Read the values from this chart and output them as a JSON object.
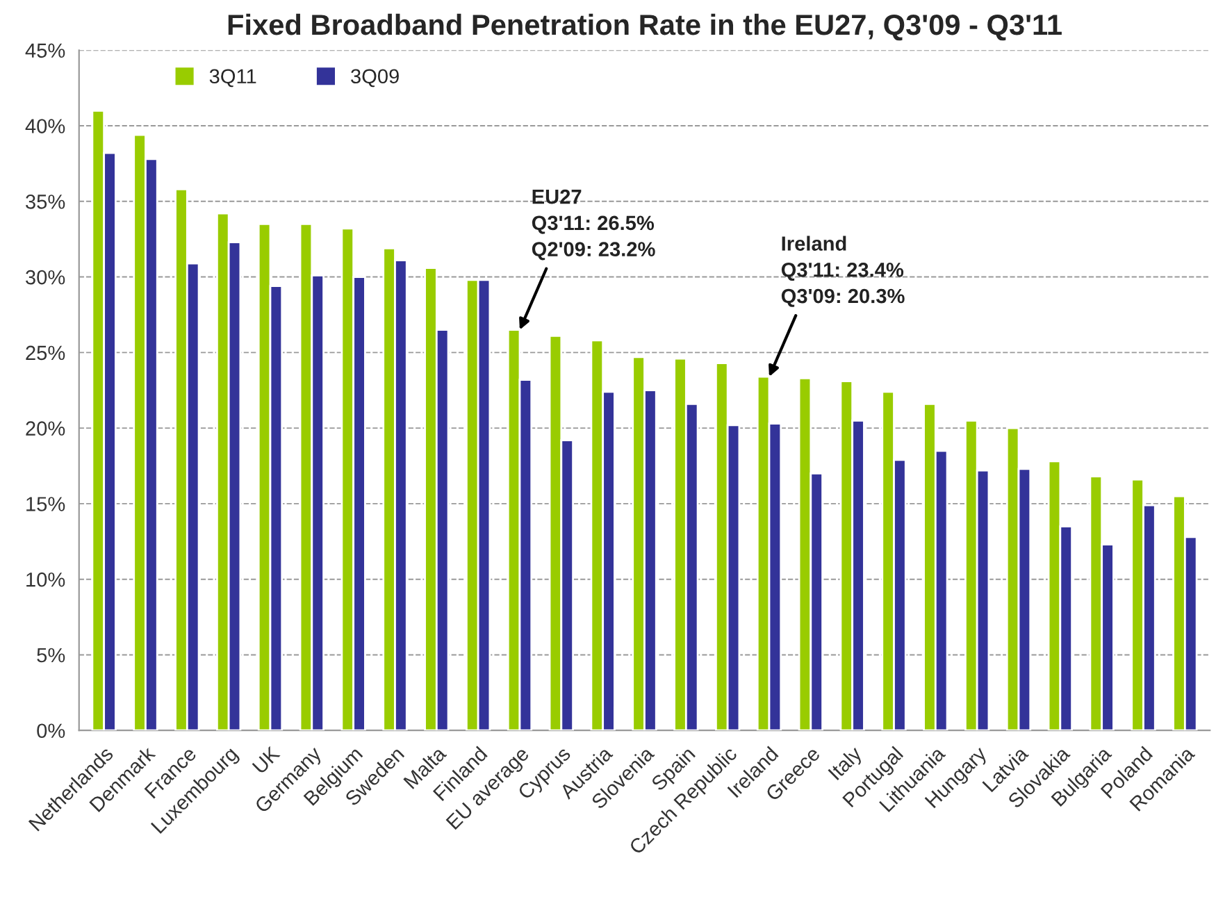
{
  "chart_data": {
    "type": "bar",
    "title": "Fixed Broadband Penetration Rate in the EU27, Q3'09 - Q3'11",
    "categories": [
      "Netherlands",
      "Denmark",
      "France",
      "Luxembourg",
      "UK",
      "Germany",
      "Belgium",
      "Sweden",
      "Malta",
      "Finland",
      "EU average",
      "Cyprus",
      "Austria",
      "Slovenia",
      "Spain",
      "Czech Republic",
      "Ireland",
      "Greece",
      "Italy",
      "Portugal",
      "Lithuania",
      "Hungary",
      "Latvia",
      "Slovakia",
      "Bulgaria",
      "Poland",
      "Romania"
    ],
    "series": [
      {
        "name": "3Q11",
        "color": "#99cc00",
        "values": [
          41.0,
          39.4,
          35.8,
          34.2,
          33.5,
          33.5,
          33.2,
          31.9,
          30.6,
          29.8,
          26.5,
          26.1,
          25.8,
          24.7,
          24.6,
          24.3,
          23.4,
          23.3,
          23.1,
          22.4,
          21.6,
          20.5,
          20.0,
          17.8,
          16.8,
          16.6,
          15.5
        ]
      },
      {
        "name": "3Q09",
        "color": "#333399",
        "values": [
          38.2,
          37.8,
          30.9,
          32.3,
          29.4,
          30.1,
          30.0,
          31.1,
          26.5,
          29.8,
          23.2,
          19.2,
          22.4,
          22.5,
          21.6,
          20.2,
          20.3,
          17.0,
          20.5,
          17.9,
          18.5,
          17.2,
          17.3,
          13.5,
          12.3,
          14.9,
          12.8
        ]
      }
    ],
    "ylim": [
      0,
      45
    ],
    "yticks": [
      {
        "value": 0,
        "label": "0%"
      },
      {
        "value": 5,
        "label": "5%"
      },
      {
        "value": 10,
        "label": "10%"
      },
      {
        "value": 15,
        "label": "15%"
      },
      {
        "value": 20,
        "label": "20%"
      },
      {
        "value": 25,
        "label": "25%"
      },
      {
        "value": 30,
        "label": "30%"
      },
      {
        "value": 35,
        "label": "35%"
      },
      {
        "value": 40,
        "label": "40%"
      },
      {
        "value": 45,
        "label": "45%"
      }
    ],
    "grid": "y",
    "legend": "top left",
    "annotations": [
      {
        "text": "EU27\nQ3'11: 26.5%\nQ2'09: 23.2%",
        "x": "EU average",
        "y": 26.5
      },
      {
        "text": "Ireland\nQ3'11: 23.4%\nQ3'09: 20.3%",
        "x": "Ireland",
        "y": 23.4
      }
    ]
  }
}
